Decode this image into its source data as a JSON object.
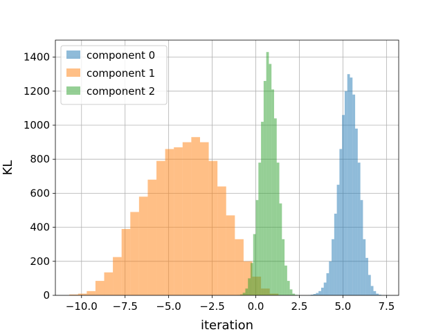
{
  "chart_data": {
    "type": "histogram",
    "title": "",
    "xlabel": "iteration",
    "ylabel": "KL",
    "xlim": [
      -11.5,
      8.2
    ],
    "ylim": [
      0,
      1500
    ],
    "grid": true,
    "legend_position": "top-left",
    "x_ticks": [
      -10.0,
      -7.5,
      -5.0,
      -2.5,
      0.0,
      2.5,
      5.0,
      7.5
    ],
    "x_tick_labels": [
      "−10.0",
      "−7.5",
      "−5.0",
      "−2.5",
      "0.0",
      "2.5",
      "5.0",
      "7.5"
    ],
    "y_ticks": [
      0,
      200,
      400,
      600,
      800,
      1000,
      1200,
      1400
    ],
    "y_tick_labels": [
      "0",
      "200",
      "400",
      "600",
      "800",
      "1000",
      "1200",
      "1400"
    ],
    "series": [
      {
        "name": "component 0",
        "color": "#1f77b4",
        "alpha": 0.5,
        "bin_start": 3.0,
        "bin_width": 0.15,
        "counts": [
          2,
          4,
          8,
          14,
          25,
          45,
          75,
          130,
          200,
          330,
          480,
          650,
          860,
          1060,
          1200,
          1300,
          1280,
          1180,
          980,
          780,
          560,
          330,
          220,
          120,
          55,
          25,
          10,
          4,
          2,
          1,
          1
        ]
      },
      {
        "name": "component 1",
        "color": "#ff7f0e",
        "alpha": 0.5,
        "bin_start": -10.7,
        "bin_width": 0.5,
        "counts": [
          5,
          10,
          25,
          85,
          135,
          225,
          390,
          490,
          580,
          680,
          790,
          860,
          870,
          900,
          930,
          900,
          790,
          640,
          470,
          330,
          200,
          110,
          40,
          10
        ]
      },
      {
        "name": "component 2",
        "color": "#2ca02c",
        "alpha": 0.5,
        "bin_start": -1.05,
        "bin_width": 0.15,
        "counts": [
          2,
          5,
          15,
          40,
          100,
          190,
          360,
          560,
          780,
          1020,
          1260,
          1430,
          1360,
          1210,
          1040,
          780,
          540,
          330,
          175,
          85,
          35,
          10,
          3
        ]
      }
    ]
  }
}
